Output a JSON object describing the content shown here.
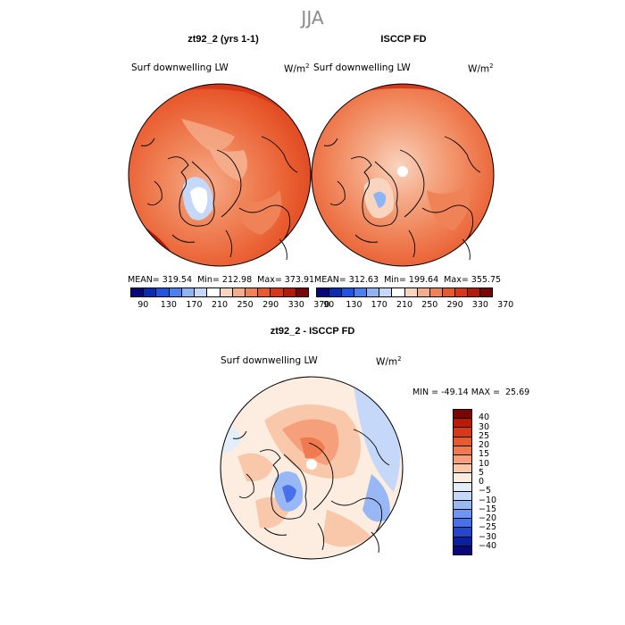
{
  "season": "JJA",
  "panels": {
    "model": {
      "title": "zt92_2 (yrs 1-1)",
      "variable": "Surf downwelling LW",
      "unit": "W/m",
      "unit_exp": "2",
      "stats": "MEAN= 319.54  Min= 212.98  Max= 373.91"
    },
    "obs": {
      "title": "ISCCP FD",
      "variable": "Surf downwelling LW",
      "unit": "W/m",
      "unit_exp": "2",
      "stats": "MEAN= 312.63  Min= 199.64  Max= 355.75"
    },
    "diff": {
      "title": "zt92_2 - ISCCP FD",
      "variable": "Surf downwelling LW",
      "unit": "W/m",
      "unit_exp": "2",
      "stats": "MIN = -49.14 MAX =  25.69"
    }
  },
  "colorbar_abs": {
    "colors": [
      "#08087a",
      "#0b2bb0",
      "#1f55e0",
      "#4a80f0",
      "#8fb4f5",
      "#c6d8fa",
      "#ffffff",
      "#f9d4bf",
      "#f5ac8a",
      "#f08257",
      "#e85a2d",
      "#d8381a",
      "#b21a0b",
      "#7a0505"
    ],
    "ticks": [
      "90",
      "130",
      "170",
      "210",
      "250",
      "290",
      "330",
      "370"
    ]
  },
  "colorbar_diff": {
    "colors": [
      "#7a0505",
      "#b81a0b",
      "#d8381a",
      "#e85a2d",
      "#f07a4f",
      "#f5a07a",
      "#f9c8aa",
      "#fdece0",
      "#e4eefb",
      "#c6d8fa",
      "#98b8f5",
      "#6e95f0",
      "#4a70e8",
      "#2445cc",
      "#0b20a0",
      "#08087a"
    ],
    "labels": [
      "40",
      "30",
      "25",
      "20",
      "15",
      "10",
      "5",
      "0",
      "−5",
      "−10",
      "−15",
      "−20",
      "−25",
      "−30",
      "−40"
    ]
  }
}
